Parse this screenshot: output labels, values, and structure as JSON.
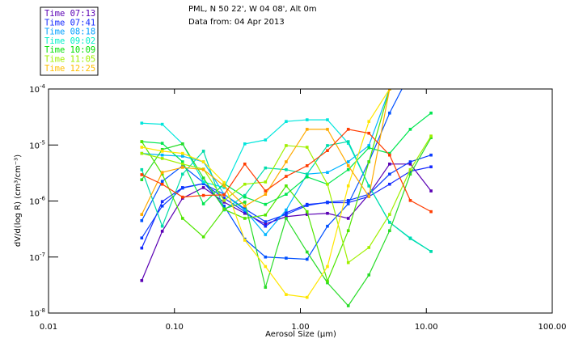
{
  "header": {
    "line1": "PML, N 50 22', W 04 08', Alt 0m",
    "line2": "Data from: 04 Apr 2013"
  },
  "legend": [
    {
      "label": "Time 07:13",
      "color": "#5a00b4"
    },
    {
      "label": "Time 07:41",
      "color": "#1428ff"
    },
    {
      "label": "Time 08:18",
      "color": "#00a0ff"
    },
    {
      "label": "Time 09:02",
      "color": "#00f0c8"
    },
    {
      "label": "Time 10:09",
      "color": "#00e000"
    },
    {
      "label": "Time 11:05",
      "color": "#a0f000"
    },
    {
      "label": "Time 12:25",
      "color": "#ffbe00"
    }
  ],
  "chart_data": {
    "type": "line",
    "xlabel": "Aerosol Size (µm)",
    "ylabel": "dV/d(log R) (cm³/cm⁻³)",
    "xscale": "log",
    "yscale": "log",
    "xlim": [
      0.01,
      100
    ],
    "ylim": [
      1e-08,
      0.0001
    ],
    "xticks": [
      {
        "v": 0.01,
        "label": "0.01"
      },
      {
        "v": 0.1,
        "label": "0.10"
      },
      {
        "v": 1,
        "label": "1.00"
      },
      {
        "v": 10,
        "label": "10.00"
      },
      {
        "v": 100,
        "label": "100.00"
      }
    ],
    "yticks": [
      {
        "v": -4,
        "base": "10",
        "exp": "-4"
      },
      {
        "v": -5,
        "base": "10",
        "exp": "-5"
      },
      {
        "v": -6,
        "base": "10",
        "exp": "-6"
      },
      {
        "v": -7,
        "base": "10",
        "exp": "-7"
      },
      {
        "v": -8,
        "base": "10",
        "exp": "-8"
      }
    ],
    "x": [
      0.055,
      0.08,
      0.116,
      0.17,
      0.248,
      0.362,
      0.528,
      0.771,
      1.13,
      1.64,
      2.4,
      3.5,
      5.11,
      7.46,
      10.9
    ],
    "y_note": "values given as log10(dV/dlogR)",
    "series": [
      {
        "color": "#5a00b4",
        "log10_values": [
          -7.42,
          -6.54,
          -5.95,
          -5.76,
          -6.02,
          -6.22,
          -6.41,
          -6.28,
          -6.24,
          -6.22,
          -6.31,
          -5.88,
          -5.34,
          -5.34,
          -5.82
        ]
      },
      {
        "color": "#1428ff",
        "log10_values": [
          -6.84,
          -6.01,
          -5.76,
          -5.69,
          -5.95,
          -6.19,
          -6.45,
          -6.21,
          -6.06,
          -6.03,
          -6.03,
          -5.92,
          -5.7,
          -5.47,
          -5.39
        ]
      },
      {
        "color": "#0a3cff",
        "log10_values": [
          -6.66,
          -6.09,
          -5.77,
          -5.69,
          -5.88,
          -6.14,
          -6.37,
          -6.24,
          -6.08,
          -6.02,
          -5.99,
          -5.88,
          -5.52,
          -5.3,
          -5.18
        ]
      },
      {
        "color": "#0050ff",
        "log10_values": [
          -6.35,
          -5.65,
          -5.37,
          -5.67,
          -6.09,
          -6.68,
          -7.0,
          -7.02,
          -7.04,
          -6.45,
          -6.05,
          -5.3,
          -4.43,
          -3.71,
          -3.42
        ]
      },
      {
        "color": "#00b4ff",
        "log10_values": [
          -5.15,
          -5.18,
          -5.2,
          -5.3,
          -5.88,
          -6.16,
          -6.6,
          -6.16,
          -5.52,
          -5.49,
          -5.3,
          -5.01,
          -4.0,
          -3.71,
          -3.86
        ]
      },
      {
        "color": "#00e6dc",
        "log10_values": [
          -4.61,
          -4.63,
          -4.98,
          -5.66,
          -5.76,
          -4.98,
          -4.91,
          -4.58,
          -4.55,
          -4.55,
          -4.97,
          -5.73,
          -6.38,
          -6.66,
          -6.9
        ]
      },
      {
        "color": "#00dcaa",
        "log10_values": [
          -5.44,
          -6.45,
          -5.52,
          -5.11,
          -6.16,
          -5.9,
          -5.41,
          -5.44,
          -5.52,
          -5.01,
          -4.94,
          -5.73,
          -6.38,
          -6.67,
          -6.9
        ]
      },
      {
        "color": "#00e650",
        "log10_values": [
          -4.94,
          -4.97,
          -5.3,
          -6.05,
          -5.69,
          -5.93,
          -6.06,
          -5.88,
          -5.57,
          -5.7,
          -5.44,
          -5.05,
          -5.15,
          -4.72,
          -4.43
        ]
      },
      {
        "color": "#28dc28",
        "log10_values": [
          -5.62,
          -5.08,
          -4.98,
          -5.59,
          -6.14,
          -6.02,
          -7.54,
          -6.31,
          -6.91,
          -7.46,
          -7.87,
          -7.32,
          -6.53,
          -5.52,
          -4.87
        ]
      },
      {
        "color": "#50e600",
        "log10_values": [
          -4.94,
          -5.52,
          -6.31,
          -6.64,
          -6.15,
          -6.31,
          -6.25,
          -5.73,
          -6.19,
          -7.43,
          -6.53,
          -5.3,
          -4.0,
          -3.64,
          -3.57
        ]
      },
      {
        "color": "#a0f000",
        "log10_values": [
          -5.15,
          -5.24,
          -5.34,
          -5.43,
          -5.99,
          -5.7,
          -5.66,
          -5.01,
          -5.04,
          -5.7,
          -7.1,
          -6.83,
          -6.24,
          -5.44,
          -4.84
        ]
      },
      {
        "color": "#ffe600",
        "log10_values": [
          -5.04,
          -5.11,
          -5.15,
          -5.3,
          -5.67,
          -6.7,
          -7.17,
          -7.67,
          -7.72,
          -7.17,
          -5.73,
          -4.58,
          -4.0,
          -3.57,
          -3.42
        ]
      },
      {
        "color": "#ffaa00",
        "log10_values": [
          -6.24,
          -5.49,
          -5.4,
          -5.44,
          -5.73,
          -6.09,
          -5.88,
          -5.3,
          -4.72,
          -4.72,
          -5.37,
          -5.92,
          -4.0,
          -3.71,
          -3.57
        ]
      },
      {
        "color": "#ff3c00",
        "log10_values": [
          -5.53,
          -5.7,
          -5.93,
          -5.9,
          -5.89,
          -5.34,
          -5.82,
          -5.56,
          -5.37,
          -5.1,
          -4.72,
          -4.79,
          -5.18,
          -5.99,
          -6.19
        ]
      }
    ]
  }
}
